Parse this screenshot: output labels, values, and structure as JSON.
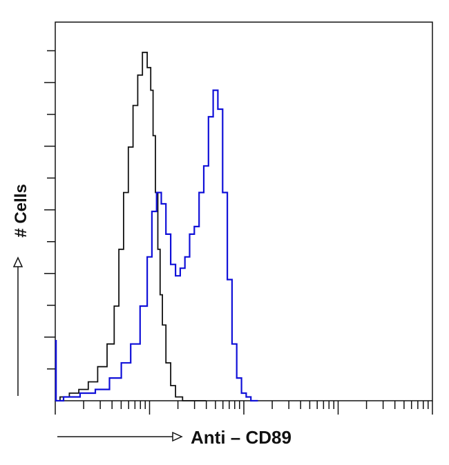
{
  "chart_data": {
    "type": "line",
    "title": "",
    "xlabel": "Anti – CD89",
    "ylabel": "# Cells",
    "x_scale": "log",
    "xlim": [
      1,
      10000
    ],
    "ylim": [
      0,
      100
    ],
    "grid": false,
    "legend": "none",
    "series": [
      {
        "color": "#111111",
        "x": [
          1,
          1.26,
          1.58,
          2.0,
          2.51,
          3.16,
          3.98,
          4.47,
          5.01,
          5.62,
          6.31,
          7.08,
          7.94,
          8.91,
          10.0,
          10.6,
          11.2,
          11.9,
          12.6,
          13.3,
          14.1,
          15.8,
          17.8,
          20.0,
          25.1,
          31.6,
          39.8
        ],
        "values": [
          0,
          1,
          2,
          3,
          5,
          9,
          15,
          25,
          40,
          55,
          67,
          78,
          86,
          92,
          88,
          82,
          70,
          55,
          40,
          28,
          20,
          10,
          4,
          1,
          0,
          0,
          0
        ]
      },
      {
        "color": "#1010d8",
        "x": [
          1,
          1.5,
          2.24,
          3.16,
          4.47,
          5.62,
          7.08,
          8.91,
          10.0,
          11.2,
          12.6,
          14.1,
          15.8,
          17.8,
          20.0,
          22.4,
          25.1,
          28.2,
          31.6,
          35.5,
          39.8,
          44.7,
          50.1,
          56.2,
          63.1,
          70.8,
          79.4,
          89.1,
          100,
          112,
          126,
          141
        ],
        "values": [
          0,
          1,
          2,
          3,
          6,
          10,
          15,
          25,
          38,
          50,
          55,
          52,
          44,
          36,
          33,
          35,
          38,
          44,
          46,
          55,
          62,
          75,
          82,
          77,
          55,
          32,
          15,
          6,
          2,
          1,
          0,
          0
        ]
      }
    ]
  }
}
